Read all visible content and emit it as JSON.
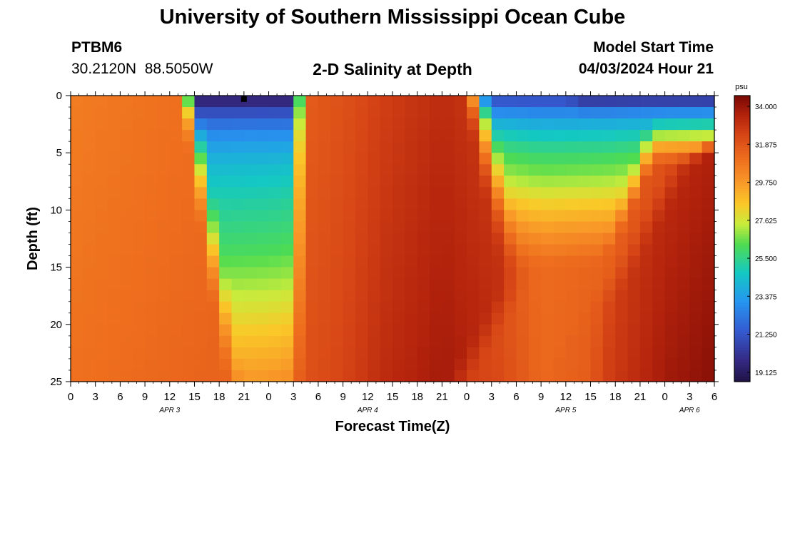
{
  "header": {
    "title": "University of Southern Mississippi Ocean Cube",
    "station_id": "PTBM6",
    "station_coords": "30.2120N  88.5050W",
    "chart_title": "2-D Salinity at Depth",
    "model_start_label": "Model Start Time",
    "model_start_value": "04/03/2024 Hour 21"
  },
  "footer": {
    "title": "University of Southern Mississippi Ocean Cube"
  },
  "chart_data": {
    "type": "heatmap",
    "title": "2-D Salinity at Depth",
    "xlabel": "Forecast Time(Z)",
    "ylabel": "Depth (ft)",
    "x_tick_labels": [
      "0",
      "3",
      "6",
      "9",
      "12",
      "15",
      "18",
      "21",
      "0",
      "3",
      "6",
      "9",
      "12",
      "15",
      "18",
      "21",
      "0",
      "3",
      "6",
      "9",
      "12",
      "15",
      "18",
      "21",
      "0",
      "3",
      "6"
    ],
    "x_range_hours": [
      0,
      78
    ],
    "date_labels": [
      {
        "label": "APR 3",
        "hour": 12
      },
      {
        "label": "APR 4",
        "hour": 36
      },
      {
        "label": "APR 5",
        "hour": 60
      },
      {
        "label": "APR 6",
        "hour": 75
      }
    ],
    "y_ticks": [
      0,
      5,
      10,
      15,
      20,
      25
    ],
    "y_range": [
      0,
      25
    ],
    "y_inverted": true,
    "colorbar": {
      "unit": "psu",
      "min": 18.6,
      "max": 34.6,
      "ticks": [
        "34.000",
        "31.875",
        "29.750",
        "27.625",
        "25.500",
        "23.375",
        "21.250",
        "19.125"
      ]
    },
    "grid_resolution": {
      "hour_step": 1.5,
      "depth_step": 1
    },
    "freshwater_events": [
      {
        "center_hour": 21,
        "surface_salinity": 18.8,
        "base_depth": 28,
        "half_width_surface": 5.5,
        "half_width_bottom": 2.2,
        "half_width_fringe": 2.4,
        "skew_hour_per_ft": 0.1
      },
      {
        "center_hour": 61,
        "surface_salinity": 20.5,
        "base_depth": 15,
        "half_width_surface": 10,
        "half_width_bottom": 4,
        "half_width_fringe": 3.5,
        "skew_hour_per_ft": -0.12
      },
      {
        "center_hour": 73,
        "surface_salinity": 19.5,
        "base_depth": 6,
        "half_width_surface": 12,
        "half_width_bottom": 4,
        "half_width_fringe": 4,
        "skew_hour_per_ft": -0.8
      }
    ],
    "background_salinity": [
      {
        "hour": 0,
        "surface": 30.6,
        "bottom": 31.0
      },
      {
        "hour": 12,
        "surface": 31.0,
        "bottom": 31.3
      },
      {
        "hour": 24,
        "surface": 31.3,
        "bottom": 31.6
      },
      {
        "hour": 33,
        "surface": 32.0,
        "bottom": 32.4
      },
      {
        "hour": 38,
        "surface": 32.6,
        "bottom": 33.2
      },
      {
        "hour": 45,
        "surface": 33.2,
        "bottom": 33.8
      },
      {
        "hour": 52,
        "surface": 32.6,
        "bottom": 33.3
      },
      {
        "hour": 57,
        "surface": 32.0,
        "bottom": 32.2
      },
      {
        "hour": 65,
        "surface": 32.2,
        "bottom": 32.6
      },
      {
        "hour": 72,
        "surface": 33.0,
        "bottom": 33.8
      },
      {
        "hour": 78,
        "surface": 33.4,
        "bottom": 34.3
      }
    ],
    "marker": {
      "hour": 21,
      "depth": 0.3
    }
  }
}
